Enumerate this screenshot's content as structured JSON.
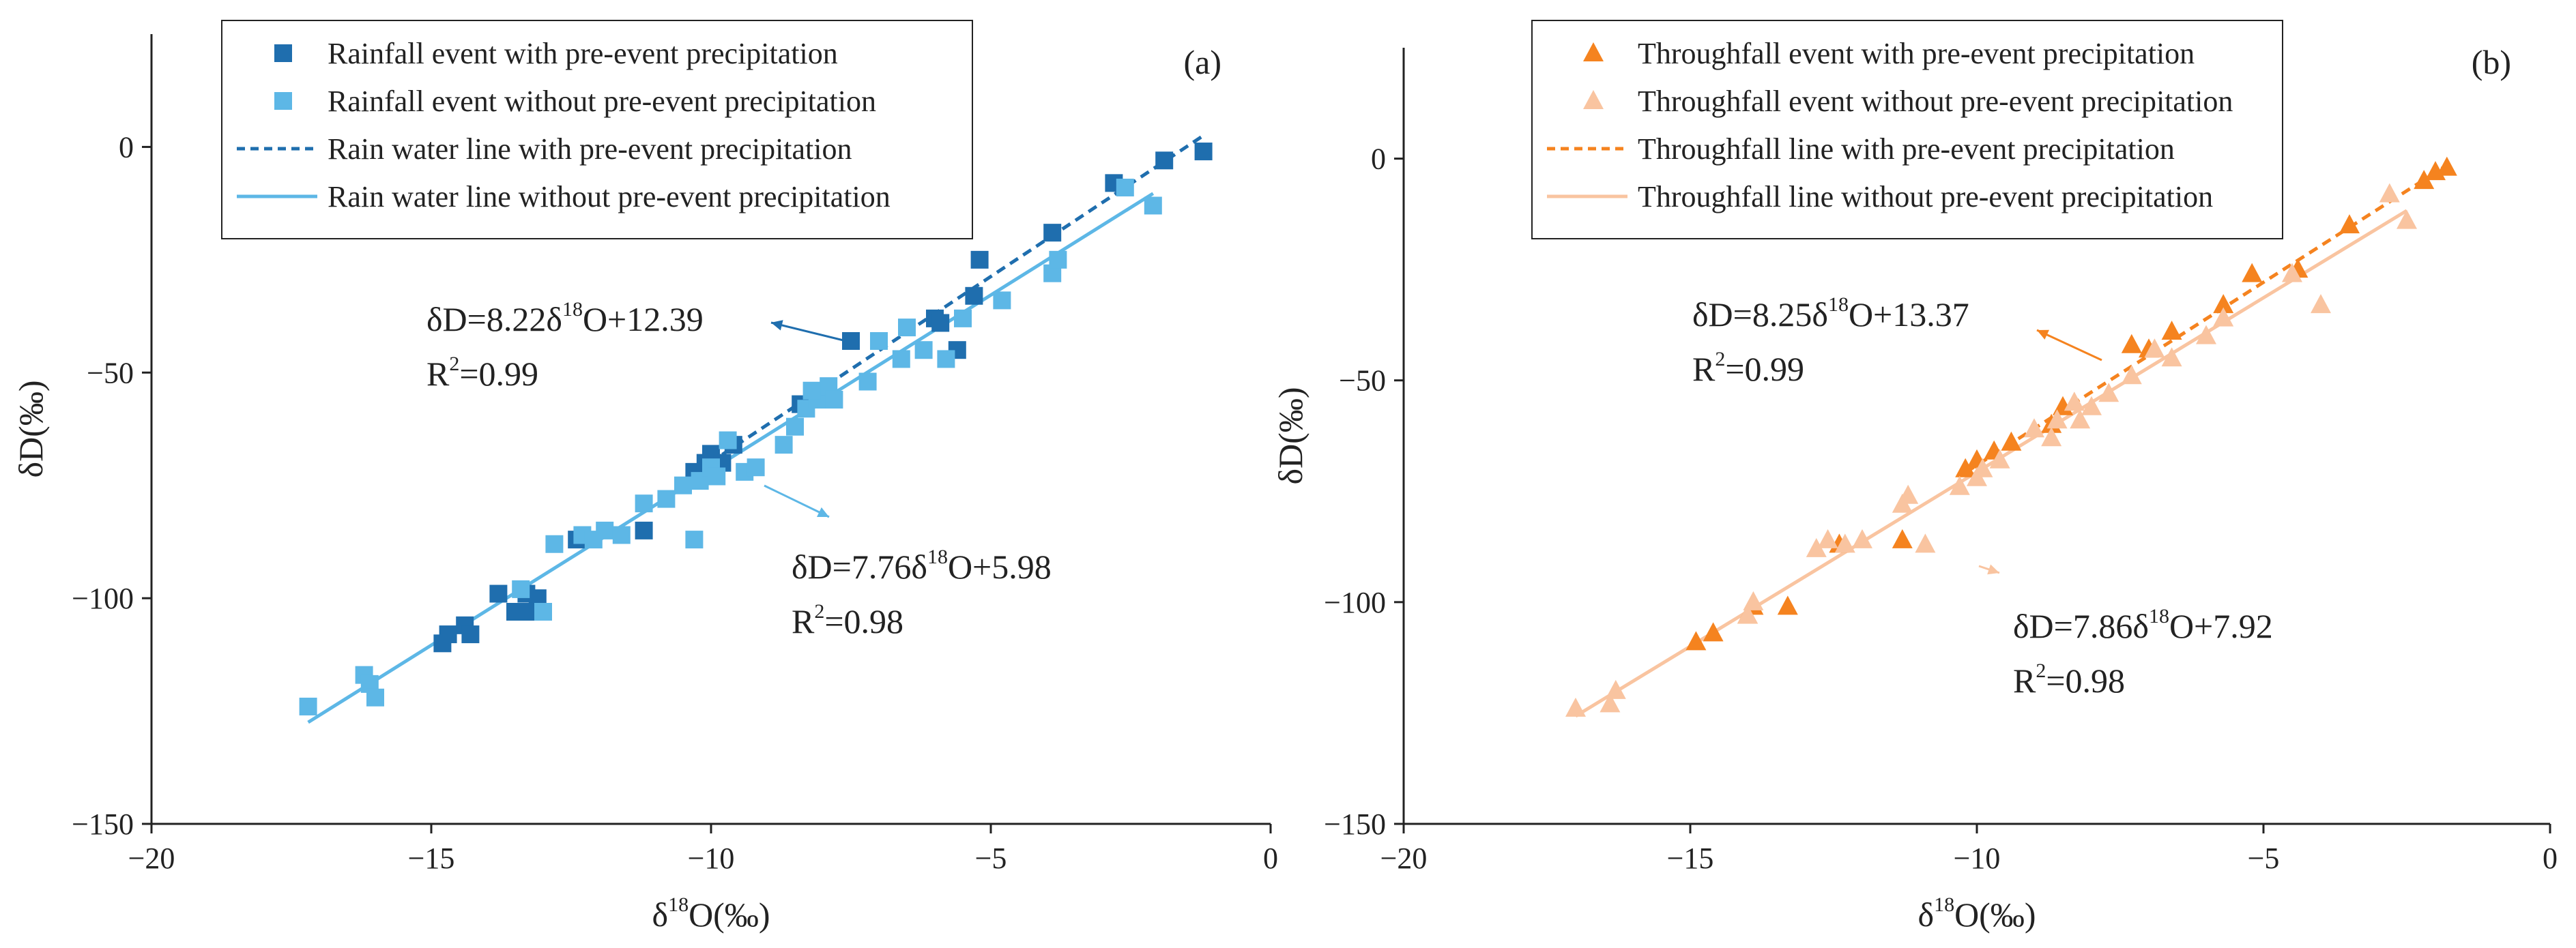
{
  "chart_data": [
    {
      "id": "a",
      "type": "scatter",
      "panel_label": "(a)",
      "xlabel": "δ18O(‰)",
      "ylabel": "δD(‰)",
      "xlim": [
        -20,
        0
      ],
      "ylim": [
        -150,
        25
      ],
      "xticks": [
        -20,
        -15,
        -10,
        -5,
        0
      ],
      "yticks": [
        -150,
        -100,
        -50,
        0
      ],
      "xtick_labels": [
        "−20",
        "−15",
        "−10",
        "−5",
        "0"
      ],
      "ytick_labels": [
        "−150",
        "−100",
        "−50",
        "0"
      ],
      "colors": {
        "with": "#1F6EAE",
        "without": "#5DB7E6"
      },
      "legend": {
        "position": "top-left",
        "entries": [
          "Rainfall event with pre-event precipitation",
          "Rainfall event without pre-event precipitation",
          "Rain water line with pre-event precipitation",
          "Rain water line without pre-event precipitation"
        ]
      },
      "series": [
        {
          "name": "Rainfall event with pre-event precipitation",
          "kind": "points",
          "marker": "square",
          "color": "#1F6EAE",
          "x": [
            -14.8,
            -14.7,
            -14.4,
            -14.3,
            -13.8,
            -13.5,
            -13.3,
            -13.1,
            -13.2,
            -12.4,
            -11.2,
            -10.3,
            -10.1,
            -10.0,
            -9.8,
            -9.6,
            -8.4,
            -7.5,
            -6.0,
            -5.9,
            -5.6,
            -5.3,
            -5.2,
            -3.9,
            -2.8,
            -1.9,
            -1.2
          ],
          "y": [
            -110,
            -108,
            -106,
            -108,
            -99,
            -103,
            -99,
            -100,
            -103,
            -87,
            -85,
            -72,
            -70,
            -68,
            -70,
            -66,
            -57,
            -43,
            -38,
            -39,
            -45,
            -33,
            -25,
            -19,
            -8,
            -3,
            -1
          ]
        },
        {
          "name": "Rainfall event without pre-event precipitation",
          "kind": "points",
          "marker": "square",
          "color": "#5DB7E6",
          "x": [
            -17.2,
            -16.2,
            -16.1,
            -16.0,
            -13.4,
            -13.0,
            -12.8,
            -12.3,
            -12.1,
            -11.9,
            -11.6,
            -11.2,
            -10.8,
            -10.5,
            -10.2,
            -10.0,
            -9.9,
            -9.7,
            -9.4,
            -9.2,
            -8.7,
            -8.5,
            -8.3,
            -8.1,
            -7.9,
            -7.8,
            -7.2,
            -7.0,
            -6.6,
            -6.5,
            -6.2,
            -5.8,
            -5.5,
            -4.8,
            -3.9,
            -3.8,
            -2.6,
            -2.1,
            -10.3,
            -8.2
          ],
          "y": [
            -124,
            -117,
            -119,
            -122,
            -98,
            -103,
            -88,
            -86,
            -87,
            -85,
            -86,
            -79,
            -78,
            -75,
            -74,
            -71,
            -73,
            -65,
            -72,
            -71,
            -66,
            -62,
            -58,
            -56,
            -53,
            -56,
            -52,
            -43,
            -47,
            -40,
            -45,
            -47,
            -38,
            -34,
            -28,
            -25,
            -9,
            -13,
            -87,
            -54
          ]
        },
        {
          "name": "Rain water line with pre-event precipitation",
          "kind": "line",
          "style": "dashed",
          "color": "#1F6EAE",
          "slope": 8.22,
          "intercept": 12.39,
          "x_range": [
            -10.5,
            -1.2
          ]
        },
        {
          "name": "Rain water line without pre-event precipitation",
          "kind": "line",
          "style": "solid",
          "color": "#5DB7E6",
          "slope": 7.76,
          "intercept": 5.98,
          "x_range": [
            -17.2,
            -2.1
          ]
        }
      ],
      "annotations": [
        {
          "slope": "8.22",
          "intercept": "12.39",
          "r2": "0.99",
          "color": "#1F6EAE"
        },
        {
          "slope": "7.76",
          "intercept": "5.98",
          "r2": "0.98",
          "color": "#5DB7E6"
        }
      ]
    },
    {
      "id": "b",
      "type": "scatter",
      "panel_label": "(b)",
      "xlabel": "δ18O(‰)",
      "ylabel": "δD(‰)",
      "xlim": [
        -20,
        0
      ],
      "ylim": [
        -150,
        25
      ],
      "xticks": [
        -20,
        -15,
        -10,
        -5,
        0
      ],
      "yticks": [
        -150,
        -100,
        -50,
        0
      ],
      "xtick_labels": [
        "−20",
        "−15",
        "−10",
        "−5",
        "0"
      ],
      "ytick_labels": [
        "−150",
        "−100",
        "−50",
        "0"
      ],
      "colors": {
        "with": "#F5831F",
        "without": "#F9C4A0"
      },
      "legend": {
        "position": "top-left",
        "entries": [
          "Throughfall event with pre-event precipitation",
          "Throughfall event without pre-event precipitation",
          "Throughfall line with pre-event precipitation",
          "Throughfall line without pre-event precipitation"
        ]
      },
      "series": [
        {
          "name": "Throughfall event with pre-event precipitation",
          "kind": "points",
          "marker": "triangle",
          "color": "#F5831F",
          "x": [
            -14.9,
            -14.6,
            -14.0,
            -13.9,
            -13.3,
            -12.4,
            -11.3,
            -10.2,
            -10.0,
            -9.7,
            -9.4,
            -8.7,
            -8.5,
            -7.3,
            -7.0,
            -6.6,
            -5.7,
            -5.2,
            -4.4,
            -3.5,
            -2.2,
            -2.0,
            -1.8
          ],
          "y": [
            -109,
            -107,
            -103,
            -101,
            -101,
            -87,
            -86,
            -70,
            -68,
            -66,
            -64,
            -60,
            -56,
            -42,
            -43,
            -39,
            -33,
            -26,
            -25,
            -15,
            -5,
            -3,
            -2
          ]
        },
        {
          "name": "Throughfall event without pre-event precipitation",
          "kind": "points",
          "marker": "triangle",
          "color": "#F9C4A0",
          "x": [
            -17.0,
            -16.4,
            -16.3,
            -14.0,
            -13.9,
            -12.8,
            -12.3,
            -12.0,
            -11.3,
            -11.2,
            -10.9,
            -10.3,
            -10.0,
            -9.9,
            -9.6,
            -9.0,
            -8.7,
            -8.6,
            -8.2,
            -8.0,
            -7.7,
            -7.3,
            -6.9,
            -6.6,
            -6.0,
            -5.7,
            -4.5,
            -4.0,
            -2.8,
            -2.5,
            -12.6,
            -8.3
          ],
          "y": [
            -124,
            -123,
            -120,
            -103,
            -100,
            -88,
            -87,
            -86,
            -78,
            -76,
            -87,
            -74,
            -72,
            -70,
            -68,
            -61,
            -63,
            -59,
            -59,
            -56,
            -53,
            -49,
            -43,
            -45,
            -40,
            -36,
            -26,
            -33,
            -8,
            -14,
            -86,
            -55
          ]
        },
        {
          "name": "Throughfall line with pre-event precipitation",
          "kind": "line",
          "style": "dashed",
          "color": "#F5831F",
          "slope": 8.25,
          "intercept": 13.37,
          "x_range": [
            -10.2,
            -1.8
          ]
        },
        {
          "name": "Throughfall line without pre-event precipitation",
          "kind": "line",
          "style": "solid",
          "color": "#F9C4A0",
          "slope": 7.86,
          "intercept": 7.92,
          "x_range": [
            -17.0,
            -2.5
          ]
        }
      ],
      "annotations": [
        {
          "slope": "8.25",
          "intercept": "13.37",
          "r2": "0.99",
          "color": "#F5831F"
        },
        {
          "slope": "7.86",
          "intercept": "7.92",
          "r2": "0.98",
          "color": "#F9C4A0"
        }
      ]
    }
  ]
}
